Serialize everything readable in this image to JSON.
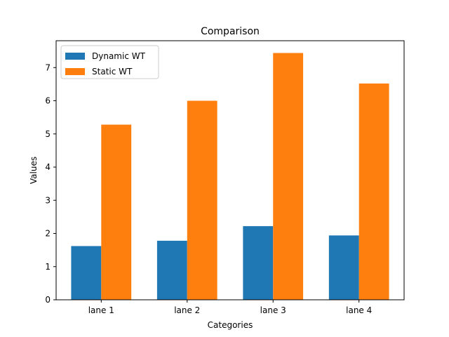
{
  "chart_data": {
    "type": "bar",
    "title": "Comparison",
    "xlabel": "Categories",
    "ylabel": "Values",
    "categories": [
      "lane 1",
      "lane 2",
      "lane 3",
      "lane 4"
    ],
    "series": [
      {
        "name": "Dynamic WT",
        "color": "#1f77b4",
        "values": [
          1.62,
          1.78,
          2.22,
          1.94
        ]
      },
      {
        "name": "Static WT",
        "color": "#ff7f0e",
        "values": [
          5.28,
          6.0,
          7.44,
          6.52
        ]
      }
    ],
    "ylim": [
      0,
      7.81
    ],
    "yticks": [
      0,
      1,
      2,
      3,
      4,
      5,
      6,
      7
    ],
    "grid": false,
    "legend_position": "top-left"
  }
}
